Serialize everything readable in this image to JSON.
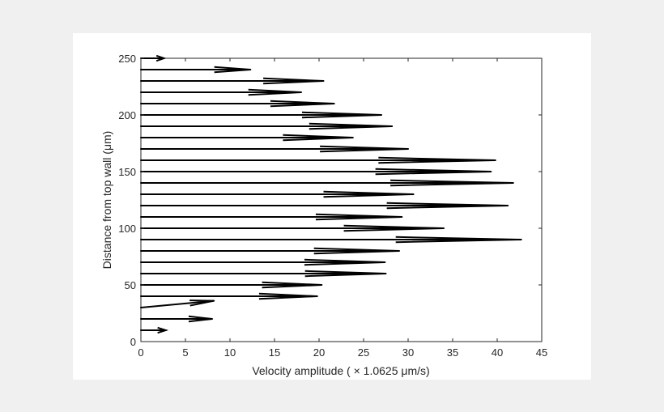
{
  "chart_data": {
    "type": "quiver",
    "title": "",
    "xlabel": "Velocity amplitude ( × 1.0625 μm/s)",
    "ylabel": "Distance from top wall (μm)",
    "xlim": [
      0,
      45
    ],
    "ylim": [
      0,
      250
    ],
    "xticks": [
      "0",
      "5",
      "10",
      "15",
      "20",
      "25",
      "30",
      "35",
      "40",
      "45"
    ],
    "yticks": [
      "0",
      "50",
      "100",
      "150",
      "200",
      "250"
    ],
    "grid": false,
    "legend": "none",
    "colors": {
      "background": "#f0f0f0",
      "panel": "#ffffff",
      "arrow": "#000000",
      "axis": "#262626"
    },
    "arrows": [
      {
        "y": 10,
        "x_tip": 2.8
      },
      {
        "y": 20,
        "x_tip": 8.0
      },
      {
        "y": 30,
        "x_tip": 8.2,
        "y_tip": 36
      },
      {
        "y": 40,
        "x_tip": 19.8
      },
      {
        "y": 50,
        "x_tip": 20.3
      },
      {
        "y": 60,
        "x_tip": 27.5
      },
      {
        "y": 70,
        "x_tip": 27.4
      },
      {
        "y": 80,
        "x_tip": 29.0
      },
      {
        "y": 90,
        "x_tip": 42.7
      },
      {
        "y": 100,
        "x_tip": 34.0
      },
      {
        "y": 110,
        "x_tip": 29.3
      },
      {
        "y": 120,
        "x_tip": 41.2
      },
      {
        "y": 130,
        "x_tip": 30.6
      },
      {
        "y": 140,
        "x_tip": 41.8
      },
      {
        "y": 150,
        "x_tip": 39.3
      },
      {
        "y": 160,
        "x_tip": 39.8
      },
      {
        "y": 170,
        "x_tip": 30.0
      },
      {
        "y": 180,
        "x_tip": 23.8
      },
      {
        "y": 190,
        "x_tip": 28.2
      },
      {
        "y": 200,
        "x_tip": 27.0
      },
      {
        "y": 210,
        "x_tip": 21.7
      },
      {
        "y": 220,
        "x_tip": 18.0
      },
      {
        "y": 230,
        "x_tip": 20.5
      },
      {
        "y": 240,
        "x_tip": 12.3
      },
      {
        "y": 250,
        "x_tip": 2.6
      }
    ]
  }
}
